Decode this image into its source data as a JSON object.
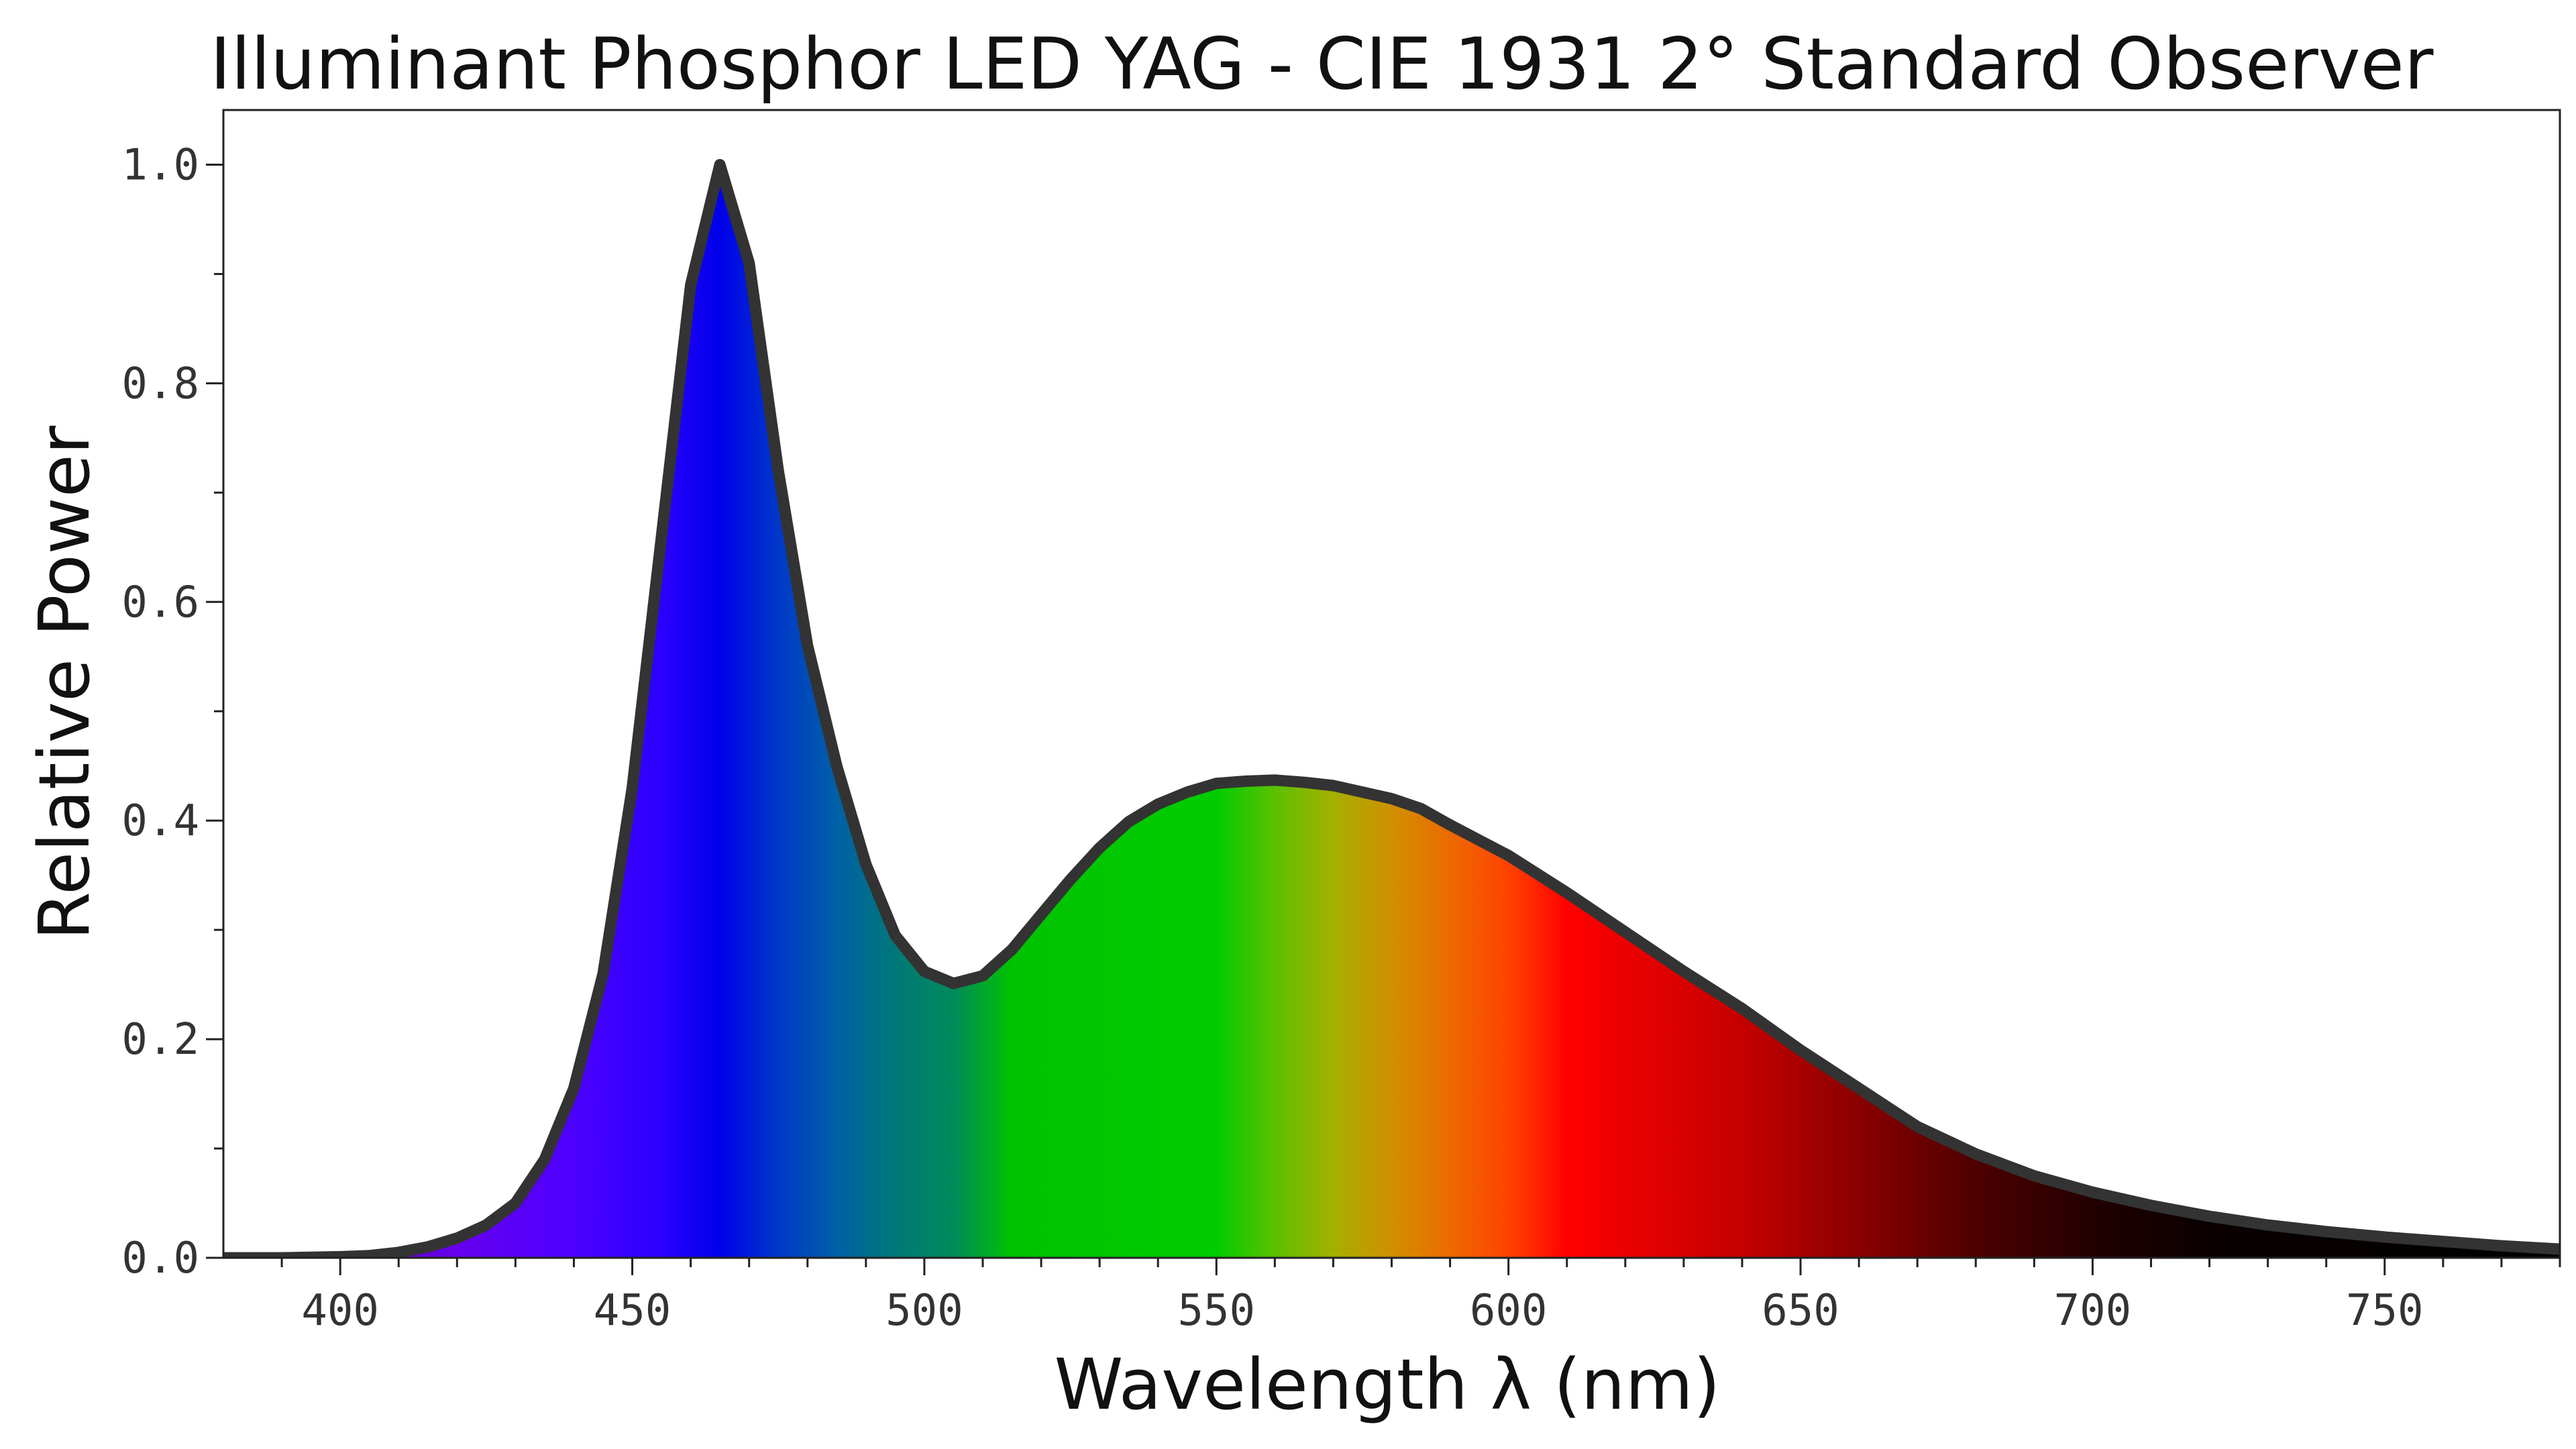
{
  "chart_data": {
    "type": "area",
    "title": "Illuminant Phosphor LED YAG - CIE 1931 2°  Standard Observer",
    "xlabel": "Wavelength λ (nm)",
    "ylabel": "Relative Power",
    "xlim": [
      380,
      780
    ],
    "ylim": [
      0,
      1.05
    ],
    "x_ticks": [
      "400",
      "450",
      "500",
      "550",
      "600",
      "650",
      "700",
      "750"
    ],
    "y_ticks": [
      "0.0",
      "0.2",
      "0.4",
      "0.6",
      "0.8",
      "1.0"
    ],
    "grid": false,
    "legend": "none",
    "fill": "spectral colors of each wavelength",
    "line_color": "#333333",
    "series": [
      {
        "x": [
          380,
          390,
          400,
          405,
          410,
          415,
          420,
          425,
          430,
          435,
          440,
          445,
          450,
          455,
          460,
          465,
          470,
          475,
          480,
          485,
          490,
          495,
          500,
          505,
          510,
          515,
          520,
          525,
          530,
          535,
          540,
          545,
          550,
          555,
          560,
          565,
          570,
          575,
          580,
          585,
          590,
          595,
          600,
          610,
          620,
          630,
          640,
          650,
          660,
          670,
          680,
          690,
          700,
          710,
          720,
          730,
          740,
          750,
          760,
          770,
          780
        ],
        "y": [
          0.0,
          0.0,
          0.001,
          0.002,
          0.005,
          0.01,
          0.018,
          0.03,
          0.05,
          0.09,
          0.155,
          0.26,
          0.43,
          0.66,
          0.89,
          1.0,
          0.91,
          0.72,
          0.56,
          0.45,
          0.36,
          0.295,
          0.262,
          0.251,
          0.258,
          0.282,
          0.314,
          0.346,
          0.375,
          0.399,
          0.415,
          0.426,
          0.434,
          0.436,
          0.437,
          0.435,
          0.432,
          0.426,
          0.42,
          0.411,
          0.396,
          0.382,
          0.368,
          0.334,
          0.298,
          0.262,
          0.228,
          0.19,
          0.155,
          0.12,
          0.095,
          0.075,
          0.06,
          0.048,
          0.038,
          0.03,
          0.024,
          0.019,
          0.015,
          0.011,
          0.008
        ]
      }
    ]
  }
}
